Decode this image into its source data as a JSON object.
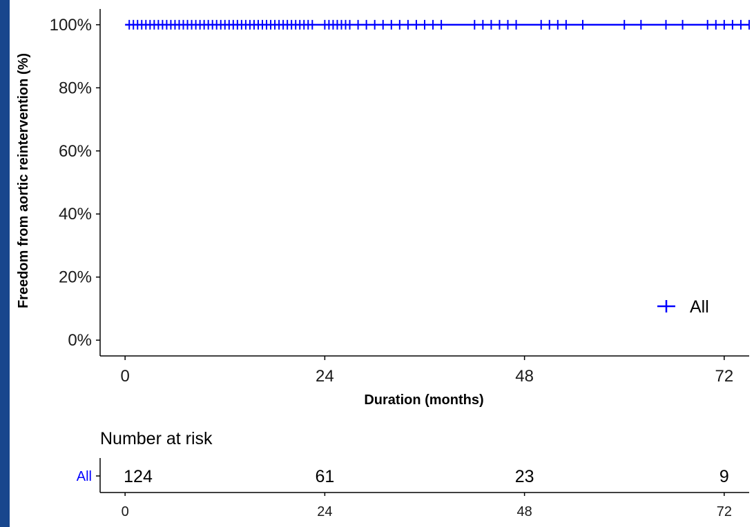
{
  "chart_data": {
    "type": "line",
    "title": "",
    "xlabel": "Duration (months)",
    "ylabel": "Freedom from aortic reintervention (%)",
    "xlim": [
      -3,
      75
    ],
    "ylim": [
      -0.05,
      1.05
    ],
    "x_ticks": [
      0,
      24,
      48,
      72
    ],
    "x_tick_labels": [
      "0",
      "24",
      "48",
      "72"
    ],
    "y_ticks": [
      0,
      0.2,
      0.4,
      0.6,
      0.8,
      1.0
    ],
    "y_tick_labels": [
      "0%",
      "20%",
      "40%",
      "60%",
      "80%",
      "100%"
    ],
    "grid": false,
    "legend": {
      "position": "bottom-right",
      "entries": [
        "All"
      ]
    },
    "series": [
      {
        "name": "All",
        "color": "#0000ff",
        "x": [
          0,
          75
        ],
        "y": [
          1.0,
          1.0
        ],
        "censor_times": [
          0.5,
          1,
          1.5,
          2,
          2.5,
          3,
          3.5,
          4,
          4.5,
          5,
          5.5,
          6,
          6.5,
          7,
          7.5,
          8,
          8.5,
          9,
          9.5,
          10,
          10.5,
          11,
          11.5,
          12,
          12.5,
          13,
          13.5,
          14,
          14.5,
          15,
          15.5,
          16,
          16.5,
          17,
          17.5,
          18,
          18.5,
          19,
          19.5,
          20,
          20.5,
          21,
          21.5,
          22,
          22.5,
          24,
          24.5,
          25,
          25.5,
          26,
          26.5,
          27,
          28,
          29,
          30,
          31,
          32,
          33,
          34,
          35,
          36,
          37,
          38,
          42,
          43,
          44,
          45,
          46,
          47,
          50,
          51,
          52,
          53,
          55,
          60,
          62,
          65,
          67,
          70,
          71,
          72,
          73,
          74,
          75
        ]
      }
    ]
  },
  "risk_table": {
    "title": "Number at risk",
    "group_label": "All",
    "times": [
      0,
      24,
      48,
      72
    ],
    "time_labels": [
      "0",
      "24",
      "48",
      "72"
    ],
    "counts": [
      "124",
      "61",
      "23",
      "9"
    ]
  },
  "colors": {
    "series": "#0000ff",
    "background_frame": "#1c4a8f",
    "axis": "#000000"
  }
}
